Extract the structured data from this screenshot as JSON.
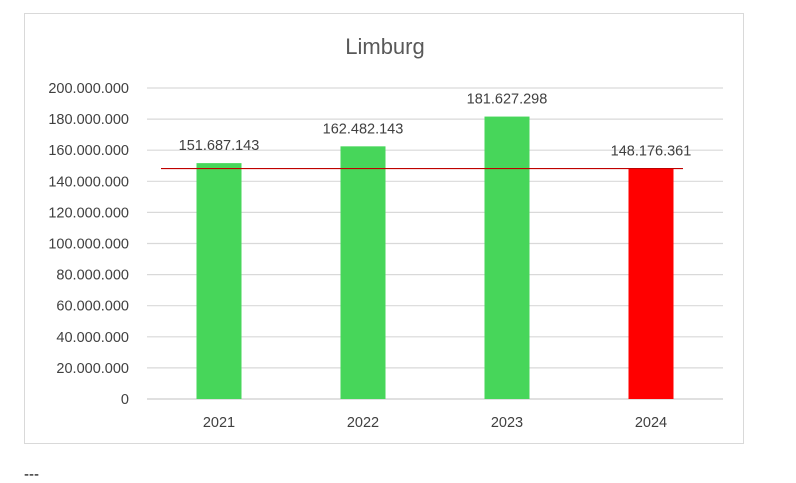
{
  "chart_data": {
    "type": "bar",
    "title": "Limburg",
    "categories": [
      "2021",
      "2022",
      "2023",
      "2024"
    ],
    "values": [
      151687143,
      162482143,
      181627298,
      148176361
    ],
    "data_labels": [
      "151.687.143",
      "162.482.143",
      "181.627.298",
      "148.176.361"
    ],
    "bar_colors": [
      "#47d65a",
      "#47d65a",
      "#47d65a",
      "#ff0000"
    ],
    "ylim": [
      0,
      200000000
    ],
    "yticks": [
      0,
      20000000,
      40000000,
      60000000,
      80000000,
      100000000,
      120000000,
      140000000,
      160000000,
      180000000,
      200000000
    ],
    "ytick_labels": [
      "0",
      "20.000.000",
      "40.000.000",
      "60.000.000",
      "80.000.000",
      "100.000.000",
      "120.000.000",
      "140.000.000",
      "160.000.000",
      "180.000.000",
      "200.000.000"
    ],
    "reference_line": {
      "value": 148176361,
      "color": "#c00000"
    },
    "grid": true,
    "legend": "none"
  },
  "footer": {
    "text": "---"
  }
}
